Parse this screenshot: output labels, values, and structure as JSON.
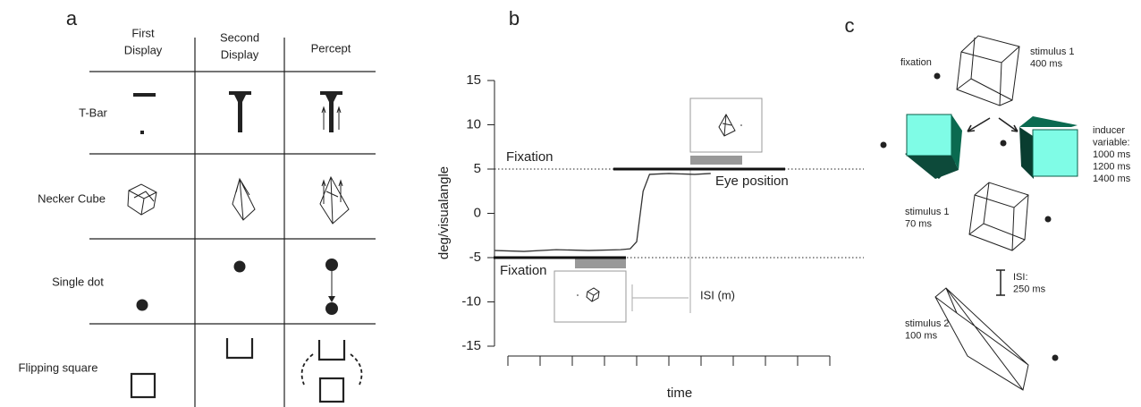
{
  "panel_labels": [
    "a",
    "b",
    "c"
  ],
  "panel_a": {
    "columns": [
      [
        "First",
        "Display"
      ],
      [
        "Second",
        "Display"
      ],
      [
        "Percept"
      ]
    ],
    "rows": [
      "T-Bar",
      "Necker Cube",
      "Single dot",
      "Flipping square"
    ]
  },
  "chart_data": {
    "type": "line",
    "x_label": "time",
    "y_label": "deg/visualangle",
    "xlim": [
      -0.5,
      10.5
    ],
    "ylim": [
      -15,
      15
    ],
    "yticks": [
      -15,
      -10,
      -5,
      0,
      5,
      10,
      15
    ],
    "series": [
      {
        "name": "Eye position",
        "color": "#333333",
        "x": [
          -0.4,
          0.5,
          1.5,
          2.5,
          3.5,
          3.8,
          4.0,
          4.2,
          4.4,
          5.0,
          5.8,
          6.3
        ],
        "values": [
          -4.2,
          -4.3,
          -4.1,
          -4.2,
          -4.1,
          -4.0,
          -3.2,
          2.5,
          4.4,
          4.5,
          4.4,
          4.5
        ]
      }
    ],
    "reference_lines": [
      5,
      -5
    ],
    "annotations": [
      {
        "text": "Fixation",
        "y": 5
      },
      {
        "text": "Fixation",
        "y": -5
      },
      {
        "text": "ISI (m)"
      }
    ]
  },
  "panel_c": {
    "labels": [
      {
        "lines": [
          "fixation"
        ]
      },
      {
        "lines": [
          "stimulus 1",
          "400 ms"
        ]
      },
      {
        "lines": [
          "inducer",
          "variable:",
          "1000 ms",
          "1200 ms",
          "1400 ms"
        ]
      },
      {
        "lines": [
          "stimulus 1",
          "70 ms"
        ]
      },
      {
        "lines": [
          "ISI:",
          "250 ms"
        ]
      },
      {
        "lines": [
          "stimulus 2",
          "100 ms"
        ]
      }
    ]
  }
}
